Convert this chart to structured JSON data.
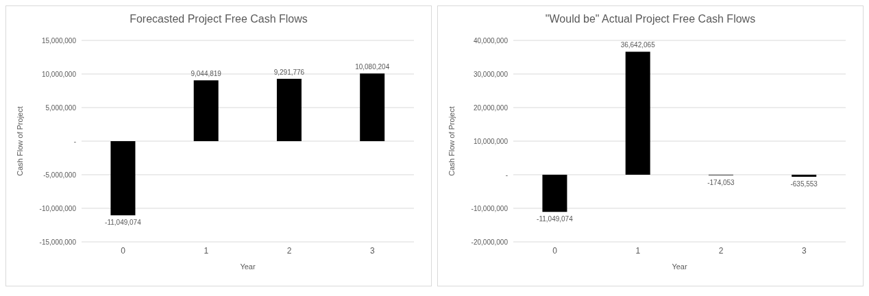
{
  "chart_data": [
    {
      "type": "bar",
      "title": "Forecasted Project Free Cash Flows",
      "xlabel": "Year",
      "ylabel": "Cash Flow of Project",
      "categories": [
        "0",
        "1",
        "2",
        "3"
      ],
      "values": [
        -11049074,
        9044819,
        9291776,
        10080204
      ],
      "color": "#000000",
      "value_labels": [
        "-11,049,074",
        "9,044,819",
        "9,291,776",
        "10,080,204"
      ],
      "ylim": [
        -15000000,
        15000000
      ],
      "yticks": [
        {
          "value": -15000000,
          "label": "-15,000,000"
        },
        {
          "value": -10000000,
          "label": "-10,000,000"
        },
        {
          "value": -5000000,
          "label": "-5,000,000"
        },
        {
          "value": 0,
          "label": "-"
        },
        {
          "value": 5000000,
          "label": "5,000,000"
        },
        {
          "value": 10000000,
          "label": "10,000,000"
        },
        {
          "value": 15000000,
          "label": "15,000,000"
        }
      ],
      "grid": "y"
    },
    {
      "type": "bar",
      "title": "\"Would be\" Actual Project Free Cash Flows",
      "xlabel": "Year",
      "ylabel": "Cash Flow of Project",
      "categories": [
        "0",
        "1",
        "2",
        "3"
      ],
      "values": [
        -11049074,
        36642065,
        -174053,
        -635553
      ],
      "color": "#000000",
      "value_labels": [
        "-11,049,074",
        "36,642,065",
        "-174,053",
        "-635,553"
      ],
      "ylim": [
        -20000000,
        40000000
      ],
      "yticks": [
        {
          "value": -20000000,
          "label": "-20,000,000"
        },
        {
          "value": -10000000,
          "label": "-10,000,000"
        },
        {
          "value": 0,
          "label": "-"
        },
        {
          "value": 10000000,
          "label": "10,000,000"
        },
        {
          "value": 20000000,
          "label": "20,000,000"
        },
        {
          "value": 30000000,
          "label": "30,000,000"
        },
        {
          "value": 40000000,
          "label": "40,000,000"
        }
      ],
      "grid": "y"
    }
  ]
}
